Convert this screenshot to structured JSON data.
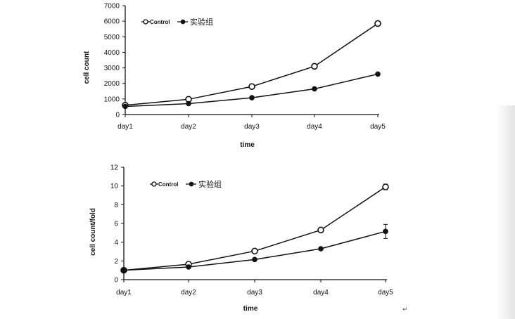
{
  "chart_data": [
    {
      "type": "line",
      "categories": [
        "day1",
        "day2",
        "day3",
        "day4",
        "day5"
      ],
      "xlabel": "time",
      "ylabel": "cell count",
      "ylim": [
        0,
        7000
      ],
      "yticks": [
        0,
        1000,
        2000,
        3000,
        4000,
        5000,
        6000,
        7000
      ],
      "grid": false,
      "legend_position": "top-left",
      "series": [
        {
          "name": "Control",
          "marker": "open-circle",
          "values": [
            600,
            980,
            1800,
            3100,
            5850
          ]
        },
        {
          "name": "实验组",
          "marker": "filled-circle",
          "values": [
            520,
            700,
            1080,
            1650,
            2600
          ]
        }
      ]
    },
    {
      "type": "line",
      "categories": [
        "day1",
        "day2",
        "day3",
        "day4",
        "day5"
      ],
      "xlabel": "time",
      "ylabel": "cell count/fold",
      "ylim": [
        0,
        12
      ],
      "yticks": [
        0,
        2,
        4,
        6,
        8,
        10,
        12
      ],
      "grid": false,
      "legend_position": "top-left",
      "series": [
        {
          "name": "Control",
          "marker": "open-circle",
          "values": [
            1.0,
            1.65,
            3.05,
            5.3,
            9.9
          ],
          "error": [
            0,
            0.05,
            0.1,
            0.1,
            0.3
          ]
        },
        {
          "name": "实验组",
          "marker": "filled-circle",
          "values": [
            1.0,
            1.35,
            2.15,
            3.3,
            5.15
          ],
          "error": [
            0,
            0.05,
            0.1,
            0.1,
            0.75
          ]
        }
      ]
    }
  ],
  "colors": {
    "line": "#111111",
    "background": "#ffffff"
  },
  "return_mark": "↵"
}
